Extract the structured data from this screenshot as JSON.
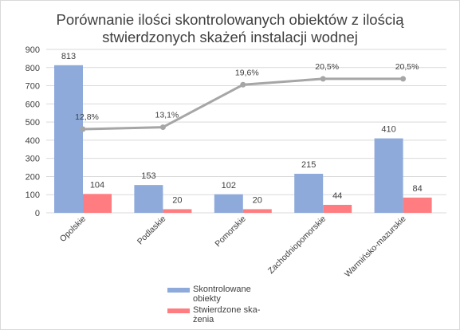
{
  "chart_data": {
    "type": "bar",
    "title_lines": [
      "Porównanie ilości skontrolowanych obiektów z ilością",
      "stwierdzonych skażeń instalacji wodnej"
    ],
    "categories": [
      "Opolskie",
      "Podlaskie",
      "Pomorskie",
      "Zachodniopomorskie",
      "Warmińsko-mazurskie"
    ],
    "series": [
      {
        "name": "Skontrolowane obiekty",
        "legend_lines": [
          "Skontrolowane",
          "obiekty"
        ],
        "values": [
          813,
          153,
          102,
          215,
          410
        ],
        "labels": [
          "813",
          "153",
          "102",
          "215",
          "410"
        ],
        "color": "#8eaadb"
      },
      {
        "name": "Stwierdzone skażenia",
        "legend_lines": [
          "Stwierdzone ska-",
          "żenia"
        ],
        "values": [
          104,
          20,
          20,
          44,
          84
        ],
        "labels": [
          "104",
          "20",
          "20",
          "44",
          "84"
        ],
        "color": "#ff7c80"
      }
    ],
    "line": {
      "values": [
        12.8,
        13.1,
        19.6,
        20.5,
        20.5
      ],
      "labels": [
        "12,8%",
        "13,1%",
        "19,6%",
        "20,5%",
        "20,5%"
      ],
      "color": "#a6a6a6"
    },
    "ylim": [
      0,
      900
    ],
    "yticks": [
      "0",
      "100",
      "200",
      "300",
      "400",
      "500",
      "600",
      "700",
      "800",
      "900"
    ],
    "grid": true,
    "legend_position": "bottom"
  }
}
